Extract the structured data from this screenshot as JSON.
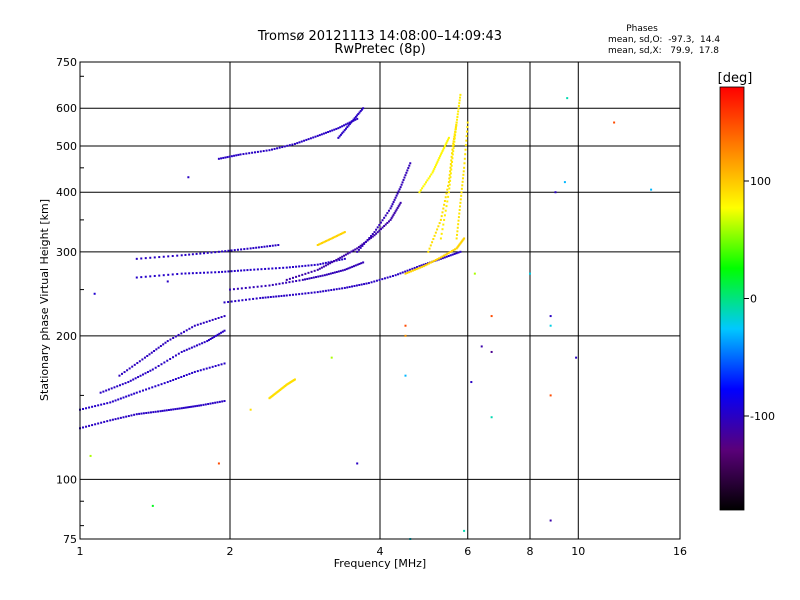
{
  "chart_data": {
    "type": "scatter",
    "title": "Tromsø 20121113 14:08:00–14:09:43",
    "subtitle": "RwPretec (8p)",
    "xlabel": "Frequency [MHz]",
    "ylabel": "Stationary phase Virtual Height [km]",
    "x_scale": "log",
    "y_scale": "log",
    "xlim": [
      1,
      16
    ],
    "ylim": [
      75,
      750
    ],
    "x_ticks": [
      1,
      2,
      4,
      6,
      8,
      10,
      16
    ],
    "y_ticks": [
      75,
      100,
      200,
      300,
      400,
      500,
      600,
      750
    ],
    "grid": true,
    "stats": {
      "title": "Phases",
      "line_o": "mean, sd,O:  -97.3,  14.4",
      "line_x": "mean, sd,X:   79.9,  17.8"
    },
    "colorbar": {
      "label": "[deg]",
      "ticks": [
        100,
        0,
        -100
      ],
      "range": [
        -180,
        180
      ],
      "stops": [
        "#000000",
        "#5a007a",
        "#0000ff",
        "#00c8ff",
        "#00ff00",
        "#ffff00",
        "#ff8000",
        "#ff0000"
      ]
    },
    "traces": [
      {
        "x": [
          1.0,
          1.15,
          1.3,
          1.45,
          1.6,
          1.75,
          1.95
        ],
        "y": [
          128,
          133,
          137,
          139,
          141,
          143,
          146
        ],
        "phase": -100
      },
      {
        "x": [
          1.0,
          1.15,
          1.3,
          1.5,
          1.7,
          1.95
        ],
        "y": [
          140,
          145,
          152,
          160,
          168,
          175
        ],
        "phase": -98
      },
      {
        "x": [
          1.1,
          1.25,
          1.4,
          1.6,
          1.8,
          1.95
        ],
        "y": [
          152,
          160,
          170,
          185,
          195,
          205
        ],
        "phase": -100
      },
      {
        "x": [
          1.2,
          1.35,
          1.5,
          1.7,
          1.95
        ],
        "y": [
          165,
          180,
          195,
          210,
          220
        ],
        "phase": -102
      },
      {
        "x": [
          1.95,
          2.3,
          2.6,
          3.0,
          3.4,
          3.8,
          4.3,
          4.8,
          5.3,
          5.8
        ],
        "y": [
          235,
          240,
          243,
          247,
          252,
          258,
          268,
          280,
          290,
          300
        ],
        "phase": -100
      },
      {
        "x": [
          2.0,
          2.4,
          2.8,
          3.1,
          3.4,
          3.7
        ],
        "y": [
          250,
          255,
          262,
          268,
          275,
          285
        ],
        "phase": -105
      },
      {
        "x": [
          1.3,
          1.6,
          1.9,
          2.2,
          2.6,
          3.0,
          3.4
        ],
        "y": [
          265,
          270,
          272,
          275,
          278,
          282,
          290
        ],
        "phase": -98
      },
      {
        "x": [
          1.3,
          1.6,
          1.9,
          2.2,
          2.5
        ],
        "y": [
          290,
          295,
          300,
          305,
          310
        ],
        "phase": -100
      },
      {
        "x": [
          2.6,
          3.0,
          3.3,
          3.6,
          3.9,
          4.2,
          4.4
        ],
        "y": [
          262,
          275,
          290,
          305,
          325,
          350,
          380
        ],
        "phase": -110
      },
      {
        "x": [
          3.6,
          3.9,
          4.2,
          4.4,
          4.6
        ],
        "y": [
          300,
          330,
          370,
          410,
          460
        ],
        "phase": -105
      },
      {
        "x": [
          1.9,
          2.1,
          2.4,
          2.7,
          3.0,
          3.3,
          3.6
        ],
        "y": [
          470,
          480,
          490,
          505,
          525,
          545,
          570
        ],
        "phase": -100
      },
      {
        "x": [
          3.3,
          3.5,
          3.7
        ],
        "y": [
          520,
          560,
          600
        ],
        "phase": -100
      },
      {
        "x": [
          4.5,
          4.9,
          5.3,
          5.7,
          5.9
        ],
        "y": [
          270,
          280,
          292,
          305,
          320
        ],
        "phase": 95
      },
      {
        "x": [
          5.0,
          5.3,
          5.5,
          5.6,
          5.7
        ],
        "y": [
          300,
          350,
          420,
          500,
          560
        ],
        "phase": 90
      },
      {
        "x": [
          5.3,
          5.5,
          5.6,
          5.7,
          5.8
        ],
        "y": [
          320,
          400,
          480,
          560,
          640
        ],
        "phase": 85
      },
      {
        "x": [
          5.7,
          5.8,
          5.9,
          6.0
        ],
        "y": [
          320,
          380,
          450,
          560
        ],
        "phase": 88
      },
      {
        "x": [
          4.8,
          5.1,
          5.3,
          5.5
        ],
        "y": [
          400,
          440,
          480,
          520
        ],
        "phase": 80
      },
      {
        "x": [
          2.4,
          2.5,
          2.6,
          2.7
        ],
        "y": [
          148,
          153,
          158,
          162
        ],
        "phase": 90
      },
      {
        "x": [
          3.0,
          3.2,
          3.4
        ],
        "y": [
          310,
          320,
          330
        ],
        "phase": 95
      }
    ],
    "scatter": [
      {
        "x": 1.05,
        "y": 112,
        "phase": 60
      },
      {
        "x": 1.4,
        "y": 88,
        "phase": 20
      },
      {
        "x": 1.9,
        "y": 108,
        "phase": 150
      },
      {
        "x": 3.6,
        "y": 108,
        "phase": -100
      },
      {
        "x": 4.6,
        "y": 75,
        "phase": -20
      },
      {
        "x": 5.9,
        "y": 78,
        "phase": -10
      },
      {
        "x": 6.4,
        "y": 190,
        "phase": -110
      },
      {
        "x": 6.7,
        "y": 185,
        "phase": -120
      },
      {
        "x": 6.7,
        "y": 135,
        "phase": -10
      },
      {
        "x": 8.0,
        "y": 270,
        "phase": -20
      },
      {
        "x": 8.8,
        "y": 220,
        "phase": -100
      },
      {
        "x": 8.8,
        "y": 210,
        "phase": -20
      },
      {
        "x": 8.8,
        "y": 150,
        "phase": 150
      },
      {
        "x": 8.8,
        "y": 82,
        "phase": -110
      },
      {
        "x": 9.0,
        "y": 400,
        "phase": -100
      },
      {
        "x": 9.4,
        "y": 420,
        "phase": -30
      },
      {
        "x": 9.5,
        "y": 630,
        "phase": -10
      },
      {
        "x": 9.9,
        "y": 180,
        "phase": -100
      },
      {
        "x": 11.8,
        "y": 560,
        "phase": 150
      },
      {
        "x": 14.0,
        "y": 405,
        "phase": -30
      },
      {
        "x": 4.5,
        "y": 210,
        "phase": 150
      },
      {
        "x": 4.5,
        "y": 200,
        "phase": 120
      },
      {
        "x": 6.1,
        "y": 160,
        "phase": -100
      },
      {
        "x": 6.7,
        "y": 220,
        "phase": 150
      },
      {
        "x": 6.2,
        "y": 270,
        "phase": 60
      },
      {
        "x": 4.5,
        "y": 165,
        "phase": -30
      },
      {
        "x": 3.2,
        "y": 180,
        "phase": 60
      },
      {
        "x": 2.2,
        "y": 140,
        "phase": 90
      },
      {
        "x": 1.65,
        "y": 430,
        "phase": -100
      },
      {
        "x": 1.5,
        "y": 260,
        "phase": -100
      },
      {
        "x": 1.07,
        "y": 245,
        "phase": -95
      }
    ]
  }
}
